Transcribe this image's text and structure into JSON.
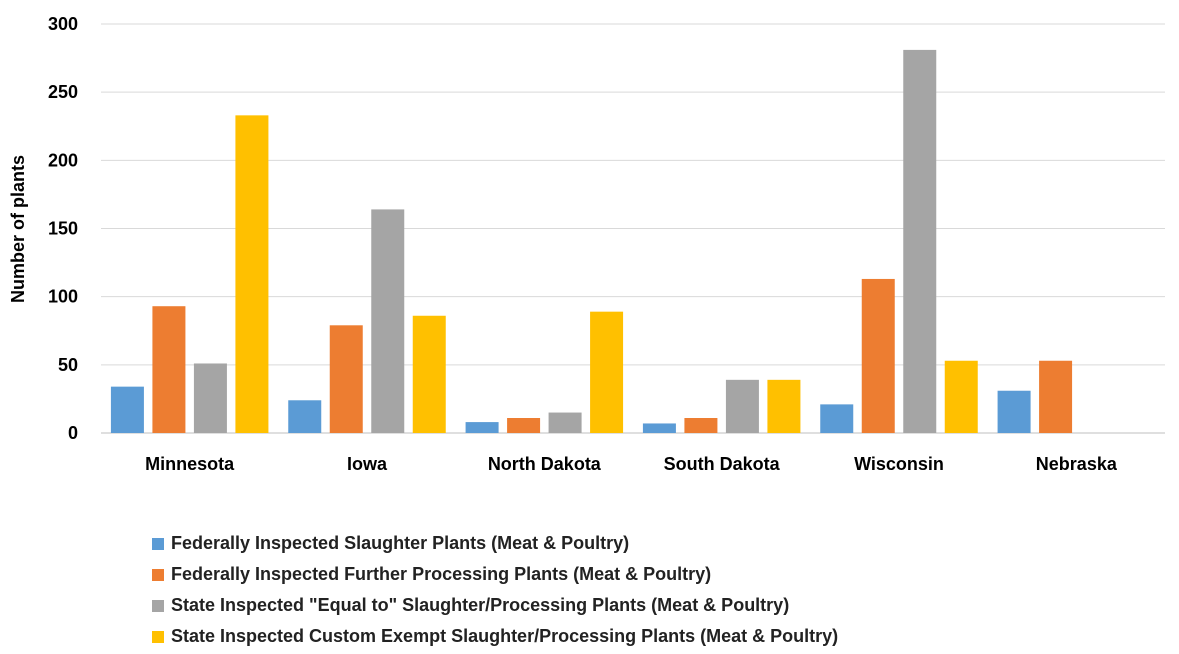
{
  "chart_data": {
    "type": "bar",
    "ylabel": "Number of plants",
    "ylim": [
      0,
      300
    ],
    "yticks": [
      0,
      50,
      100,
      150,
      200,
      250,
      300
    ],
    "grid": true,
    "legend_position": "bottom",
    "categories": [
      "Minnesota",
      "Iowa",
      "North Dakota",
      "South Dakota",
      "Wisconsin",
      "Nebraska"
    ],
    "series": [
      {
        "name": "Federally Inspected Slaughter Plants (Meat & Poultry)",
        "color": "#5B9BD5",
        "values": [
          34,
          24,
          8,
          7,
          21,
          31
        ]
      },
      {
        "name": "Federally Inspected Further Processing Plants (Meat & Poultry)",
        "color": "#ED7D31",
        "values": [
          93,
          79,
          11,
          11,
          113,
          53
        ]
      },
      {
        "name": "State Inspected \"Equal to\" Slaughter/Processing Plants (Meat & Poultry)",
        "color": "#A5A5A5",
        "values": [
          51,
          164,
          15,
          39,
          281,
          0
        ]
      },
      {
        "name": "State Inspected Custom Exempt Slaughter/Processing Plants (Meat & Poultry)",
        "color": "#FFC000",
        "values": [
          233,
          86,
          89,
          39,
          53,
          0
        ]
      }
    ]
  }
}
